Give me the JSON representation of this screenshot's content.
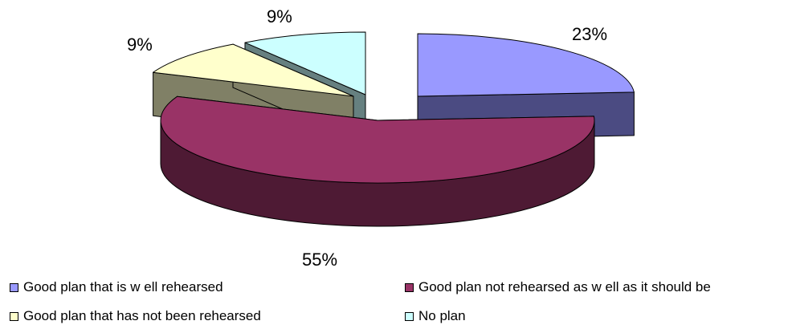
{
  "chart_data": {
    "type": "pie",
    "variant": "3d-exploded",
    "title": "",
    "slices": [
      {
        "label": "Good plan that is w ell rehearsed",
        "value": 23,
        "data_label": "23%",
        "color": "#9999ff",
        "side_color": "#4b4b82"
      },
      {
        "label": "Good plan not rehearsed as w ell as it should be",
        "value": 55,
        "data_label": "55%",
        "color": "#993366",
        "side_color": "#4e1a34"
      },
      {
        "label": "Good plan that has not been rehearsed",
        "value": 9,
        "data_label": "9%",
        "color": "#ffffcc",
        "side_color": "#808066"
      },
      {
        "label": "No plan",
        "value": 9,
        "data_label": "9%",
        "color": "#ccffff",
        "side_color": "#668080"
      }
    ],
    "legend_position": "bottom"
  }
}
